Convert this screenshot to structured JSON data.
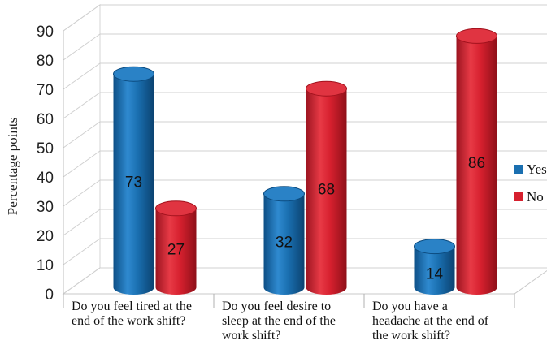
{
  "chart_data": {
    "type": "bar",
    "title": "",
    "ylabel": "Percentage points",
    "xlabel": "",
    "ylim": [
      0,
      90
    ],
    "yticks": [
      0,
      10,
      20,
      30,
      40,
      50,
      60,
      70,
      80,
      90
    ],
    "grid": true,
    "legend_position": "right",
    "categories": [
      [
        "Do you feel tired at the",
        "end of the work shift?"
      ],
      [
        "Do you feel desire to",
        "sleep at the end of the",
        "work shift?"
      ],
      [
        "Do you have a",
        "headache at the end of",
        "the work shift?"
      ]
    ],
    "series": [
      {
        "name": "Yes",
        "values": [
          73,
          32,
          14
        ],
        "color": "#1a6fb0"
      },
      {
        "name": "No",
        "values": [
          27,
          68,
          86
        ],
        "color": "#d6202e"
      }
    ]
  }
}
